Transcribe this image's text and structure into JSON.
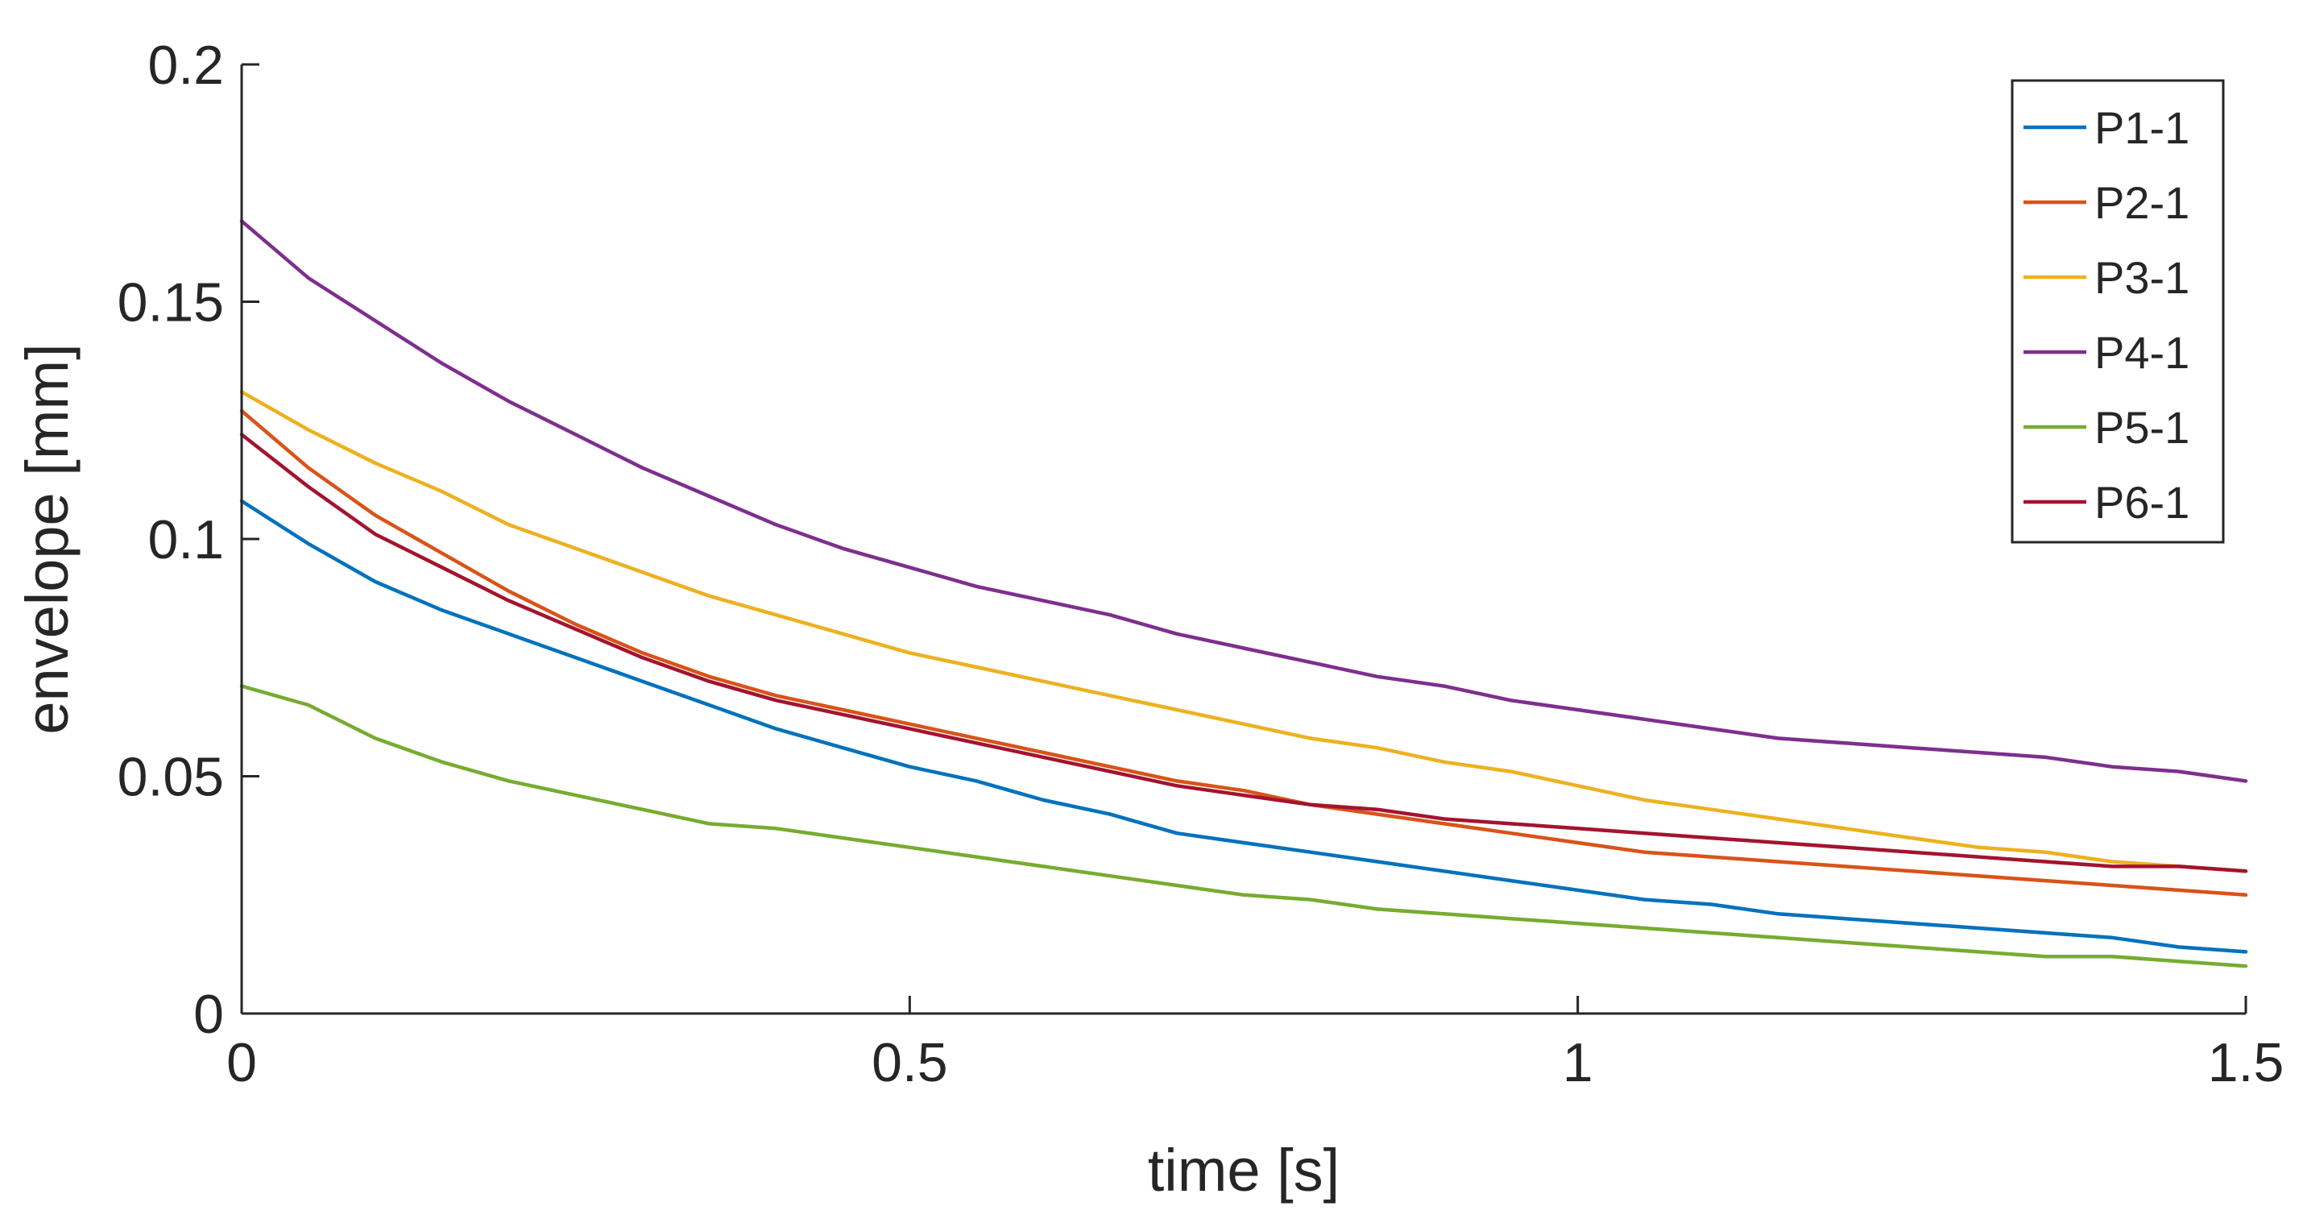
{
  "chart_data": {
    "type": "line",
    "xlabel": "time [s]",
    "ylabel": "envelope [mm]",
    "xlim": [
      0,
      1.5
    ],
    "ylim": [
      0,
      0.2
    ],
    "xticks": [
      {
        "value": 0,
        "label": "0"
      },
      {
        "value": 0.5,
        "label": "0.5"
      },
      {
        "value": 1,
        "label": "1"
      },
      {
        "value": 1.5,
        "label": "1.5"
      }
    ],
    "yticks": [
      {
        "value": 0,
        "label": "0"
      },
      {
        "value": 0.05,
        "label": "0.05"
      },
      {
        "value": 0.1,
        "label": "0.1"
      },
      {
        "value": 0.15,
        "label": "0.15"
      },
      {
        "value": 0.2,
        "label": "0.2"
      }
    ],
    "grid": false,
    "legend_position": "top-right",
    "x": [
      0,
      0.05,
      0.1,
      0.15,
      0.2,
      0.25,
      0.3,
      0.35,
      0.4,
      0.45,
      0.5,
      0.55,
      0.6,
      0.65,
      0.7,
      0.75,
      0.8,
      0.85,
      0.9,
      0.95,
      1.0,
      1.05,
      1.1,
      1.15,
      1.2,
      1.25,
      1.3,
      1.35,
      1.4,
      1.45,
      1.5
    ],
    "series": [
      {
        "name": "P1-1",
        "color": "#0072BD",
        "values": [
          0.108,
          0.099,
          0.091,
          0.085,
          0.08,
          0.075,
          0.07,
          0.065,
          0.06,
          0.056,
          0.052,
          0.049,
          0.045,
          0.042,
          0.038,
          0.036,
          0.034,
          0.032,
          0.03,
          0.028,
          0.026,
          0.024,
          0.023,
          0.021,
          0.02,
          0.019,
          0.018,
          0.017,
          0.016,
          0.014,
          0.013
        ]
      },
      {
        "name": "P2-1",
        "color": "#D95319",
        "values": [
          0.127,
          0.115,
          0.105,
          0.097,
          0.089,
          0.082,
          0.076,
          0.071,
          0.067,
          0.064,
          0.061,
          0.058,
          0.055,
          0.052,
          0.049,
          0.047,
          0.044,
          0.042,
          0.04,
          0.038,
          0.036,
          0.034,
          0.033,
          0.032,
          0.031,
          0.03,
          0.029,
          0.028,
          0.027,
          0.026,
          0.025
        ]
      },
      {
        "name": "P3-1",
        "color": "#EDB120",
        "values": [
          0.131,
          0.123,
          0.116,
          0.11,
          0.103,
          0.098,
          0.093,
          0.088,
          0.084,
          0.08,
          0.076,
          0.073,
          0.07,
          0.067,
          0.064,
          0.061,
          0.058,
          0.056,
          0.053,
          0.051,
          0.048,
          0.045,
          0.043,
          0.041,
          0.039,
          0.037,
          0.035,
          0.034,
          0.032,
          0.031,
          0.03
        ]
      },
      {
        "name": "P4-1",
        "color": "#7E2F8E",
        "values": [
          0.167,
          0.155,
          0.146,
          0.137,
          0.129,
          0.122,
          0.115,
          0.109,
          0.103,
          0.098,
          0.094,
          0.09,
          0.087,
          0.084,
          0.08,
          0.077,
          0.074,
          0.071,
          0.069,
          0.066,
          0.064,
          0.062,
          0.06,
          0.058,
          0.057,
          0.056,
          0.055,
          0.054,
          0.052,
          0.051,
          0.049
        ]
      },
      {
        "name": "P5-1",
        "color": "#77AC30",
        "values": [
          0.069,
          0.065,
          0.058,
          0.053,
          0.049,
          0.046,
          0.043,
          0.04,
          0.039,
          0.037,
          0.035,
          0.033,
          0.031,
          0.029,
          0.027,
          0.025,
          0.024,
          0.022,
          0.021,
          0.02,
          0.019,
          0.018,
          0.017,
          0.016,
          0.015,
          0.014,
          0.013,
          0.012,
          0.012,
          0.011,
          0.01
        ]
      },
      {
        "name": "P6-1",
        "color": "#A2142F",
        "values": [
          0.122,
          0.111,
          0.101,
          0.094,
          0.087,
          0.081,
          0.075,
          0.07,
          0.066,
          0.063,
          0.06,
          0.057,
          0.054,
          0.051,
          0.048,
          0.046,
          0.044,
          0.043,
          0.041,
          0.04,
          0.039,
          0.038,
          0.037,
          0.036,
          0.035,
          0.034,
          0.033,
          0.032,
          0.031,
          0.031,
          0.03
        ]
      }
    ]
  }
}
